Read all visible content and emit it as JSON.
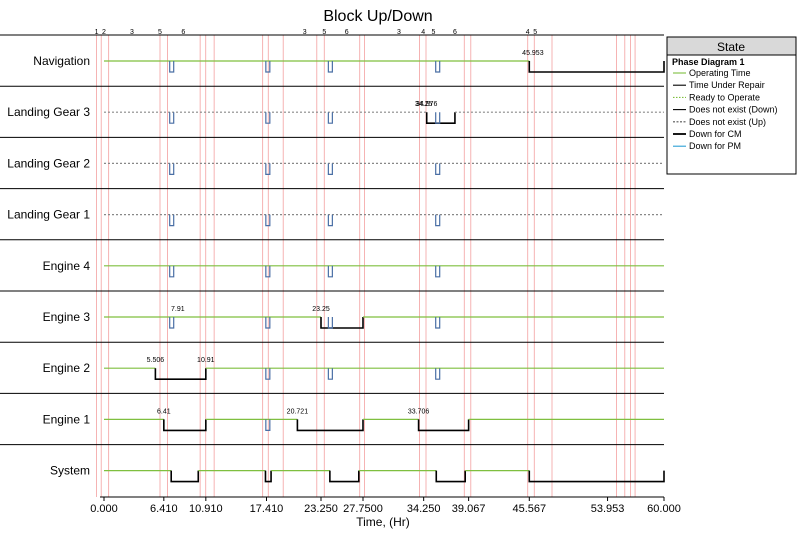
{
  "chart_data": {
    "type": "block-up-down",
    "title": "Block Up/Down",
    "xlabel": "Time, (Hr)",
    "xlim": [
      0,
      60
    ],
    "x_ticks": [
      {
        "value": 0,
        "label": "0.000"
      },
      {
        "value": 6.41,
        "label": "6.410"
      },
      {
        "value": 10.91,
        "label": "10.910"
      },
      {
        "value": 17.41,
        "label": "17.410"
      },
      {
        "value": 23.25,
        "label": "23.250"
      },
      {
        "value": 27.75,
        "label": "27.7500"
      },
      {
        "value": 34.25,
        "label": "34.250"
      },
      {
        "value": 39.067,
        "label": "39.067"
      },
      {
        "value": 45.567,
        "label": "45.567"
      },
      {
        "value": 53.953,
        "label": "53.953"
      },
      {
        "value": 60,
        "label": "60.000"
      }
    ],
    "phase_lines": [
      -0.8,
      -0.3,
      0.5,
      6.0,
      6.8,
      10.3,
      10.9,
      11.8,
      17.0,
      17.6,
      19.2,
      22.8,
      23.6,
      27.4,
      27.9,
      33.8,
      34.5,
      38.6,
      39.3,
      45.4,
      46.1,
      48.0,
      54.9,
      55.8,
      56.4,
      56.9
    ],
    "phase_markers": [
      {
        "x": -0.8,
        "label": "1"
      },
      {
        "x": 0.0,
        "label": "2"
      },
      {
        "x": 3.0,
        "label": "3"
      },
      {
        "x": 6.0,
        "label": "5"
      },
      {
        "x": 8.5,
        "label": "6"
      },
      {
        "x": 21.5,
        "label": "3"
      },
      {
        "x": 23.6,
        "label": "5"
      },
      {
        "x": 26.0,
        "label": "6"
      },
      {
        "x": 31.6,
        "label": "3"
      },
      {
        "x": 34.2,
        "label": "4"
      },
      {
        "x": 35.3,
        "label": "5"
      },
      {
        "x": 37.6,
        "label": "6"
      },
      {
        "x": 45.4,
        "label": "4"
      },
      {
        "x": 46.2,
        "label": "5"
      }
    ],
    "rows": [
      {
        "name": "Navigation",
        "style": "up",
        "cm_segments": [
          [
            45.567,
            60
          ]
        ],
        "notches": [
          7.2,
          17.5,
          24.2,
          35.7
        ],
        "annotations": [
          {
            "x": 45.953,
            "label": "45.953"
          }
        ]
      },
      {
        "name": "Landing Gear 3",
        "style": "dashed",
        "cm_segments": [
          [
            34.576,
            37.6
          ]
        ],
        "notches": [
          7.2,
          17.5,
          24.2,
          35.7
        ],
        "annotations": [
          {
            "x": 34.25,
            "label": "34.25"
          },
          {
            "x": 34.576,
            "label": "34.576"
          }
        ]
      },
      {
        "name": "Landing Gear 2",
        "style": "dashed",
        "cm_segments": [],
        "notches": [
          7.2,
          17.5,
          24.2,
          35.7
        ],
        "annotations": []
      },
      {
        "name": "Landing Gear 1",
        "style": "dashed",
        "cm_segments": [],
        "notches": [
          7.2,
          17.5,
          24.2,
          35.7
        ],
        "annotations": []
      },
      {
        "name": "Engine 4",
        "style": "up",
        "cm_segments": [],
        "notches": [
          7.2,
          17.5,
          24.2,
          35.7
        ],
        "annotations": []
      },
      {
        "name": "Engine 3",
        "style": "up",
        "cm_segments": [
          [
            23.25,
            27.75
          ]
        ],
        "notches": [
          7.2,
          17.5,
          24.2,
          35.7
        ],
        "annotations": [
          {
            "x": 7.91,
            "label": "7.91"
          },
          {
            "x": 23.25,
            "label": "23.25"
          }
        ]
      },
      {
        "name": "Engine 2",
        "style": "up",
        "cm_segments": [
          [
            5.506,
            10.91
          ]
        ],
        "notches": [
          17.5,
          24.2,
          35.7
        ],
        "annotations": [
          {
            "x": 5.506,
            "label": "5.506"
          },
          {
            "x": 10.91,
            "label": "10.91"
          }
        ]
      },
      {
        "name": "Engine 1",
        "style": "up",
        "cm_segments": [
          [
            6.41,
            10.91
          ],
          [
            20.721,
            27.75
          ],
          [
            33.706,
            39.067
          ]
        ],
        "notches": [
          17.5
        ],
        "annotations": [
          {
            "x": 6.41,
            "label": "6.41"
          },
          {
            "x": 20.721,
            "label": "20.721"
          },
          {
            "x": 33.706,
            "label": "33.706"
          }
        ]
      },
      {
        "name": "System",
        "style": "up",
        "cm_segments": [
          [
            7.2,
            10.1
          ],
          [
            17.3,
            17.9
          ],
          [
            24.2,
            27.3
          ],
          [
            35.6,
            38.7
          ],
          [
            45.567,
            60
          ]
        ],
        "notches": [],
        "annotations": []
      }
    ],
    "legend": {
      "title": "State",
      "subtitle": "Phase Diagram 1",
      "placement": "top-right",
      "items": [
        {
          "label": "Operating Time",
          "color": "#7fbf3f",
          "style": "solid"
        },
        {
          "label": "Time Under Repair",
          "color": "#000000",
          "style": "solid"
        },
        {
          "label": "Ready to Operate",
          "color": "#7fbf3f",
          "style": "dotted"
        },
        {
          "label": "Does not exist (Down)",
          "color": "#000000",
          "style": "solid"
        },
        {
          "label": "Does not exist (Up)",
          "color": "#555555",
          "style": "dashed"
        },
        {
          "label": "Down for CM",
          "color": "#000000",
          "style": "thick"
        },
        {
          "label": "Down for PM",
          "color": "#2a9fd6",
          "style": "solid"
        }
      ]
    },
    "colors": {
      "up": "#7fbf3f",
      "down": "#000000",
      "notch": "#4a6fa5",
      "phase_line": "#f3a0a0",
      "separator": "#000000"
    }
  }
}
